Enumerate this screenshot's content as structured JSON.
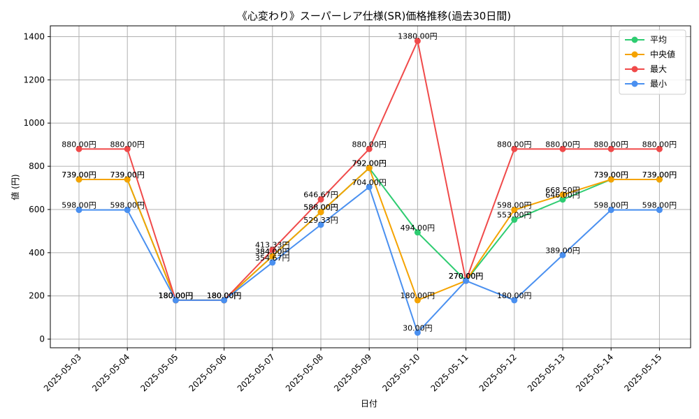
{
  "chart_data": {
    "type": "line",
    "title": "《心変わり》スーパーレア仕様(SR)価格推移(過去30日間)",
    "xlabel": "日付",
    "ylabel": "値 (円)",
    "categories": [
      "2025-05-03",
      "2025-05-04",
      "2025-05-05",
      "2025-05-06",
      "2025-05-07",
      "2025-05-08",
      "2025-05-09",
      "2025-05-10",
      "2025-05-11",
      "2025-05-12",
      "2025-05-13",
      "2025-05-14",
      "2025-05-15"
    ],
    "ylim": [
      -40,
      1450
    ],
    "yticks": [
      0,
      200,
      400,
      600,
      800,
      1000,
      1200,
      1400
    ],
    "grid": true,
    "legend_position": "top-right",
    "series": [
      {
        "name": "平均",
        "color": "#2ecc71",
        "values": [
          739,
          739,
          180,
          180,
          384,
          588,
          792,
          494,
          270,
          553,
          646,
          739,
          739
        ],
        "labels": [
          "739.00円",
          "739.00円",
          "180.00円",
          "180.00円",
          "384.00円",
          "588.00円",
          "792.00円",
          "494.00円",
          "270.00円",
          "553.00円",
          "646.00円",
          "739.00円",
          "739.00円"
        ]
      },
      {
        "name": "中央値",
        "color": "#f5a300",
        "values": [
          739,
          739,
          180,
          180,
          384,
          588,
          792,
          180,
          270,
          598,
          668.5,
          739,
          739
        ],
        "labels": [
          "739.00円",
          "739.00円",
          "180.00円",
          "180.00円",
          "384.00円",
          "588.00円",
          "792.00円",
          "180.00円",
          "270.00円",
          "598.00円",
          "668.50円",
          "739.00円",
          "739.00円"
        ]
      },
      {
        "name": "最大",
        "color": "#f04a4a",
        "values": [
          880,
          880,
          180,
          180,
          413.33,
          646.67,
          880,
          1380,
          270,
          880,
          880,
          880,
          880
        ],
        "labels": [
          "880.00円",
          "880.00円",
          "180.00円",
          "180.00円",
          "413.33円",
          "646.67円",
          "880.00円",
          "1380.00円",
          "270.00円",
          "880.00円",
          "880.00円",
          "880.00円",
          "880.00円"
        ]
      },
      {
        "name": "最小",
        "color": "#4a90f0",
        "values": [
          598,
          598,
          180,
          180,
          354.67,
          529.33,
          704,
          30,
          270,
          180,
          389,
          598,
          598
        ],
        "labels": [
          "598.00円",
          "598.00円",
          "180.00円",
          "180.00円",
          "354.67円",
          "529.33円",
          "704.00円",
          "30.00円",
          "270.00円",
          "180.00円",
          "389.00円",
          "598.00円",
          "598.00円"
        ]
      }
    ]
  }
}
